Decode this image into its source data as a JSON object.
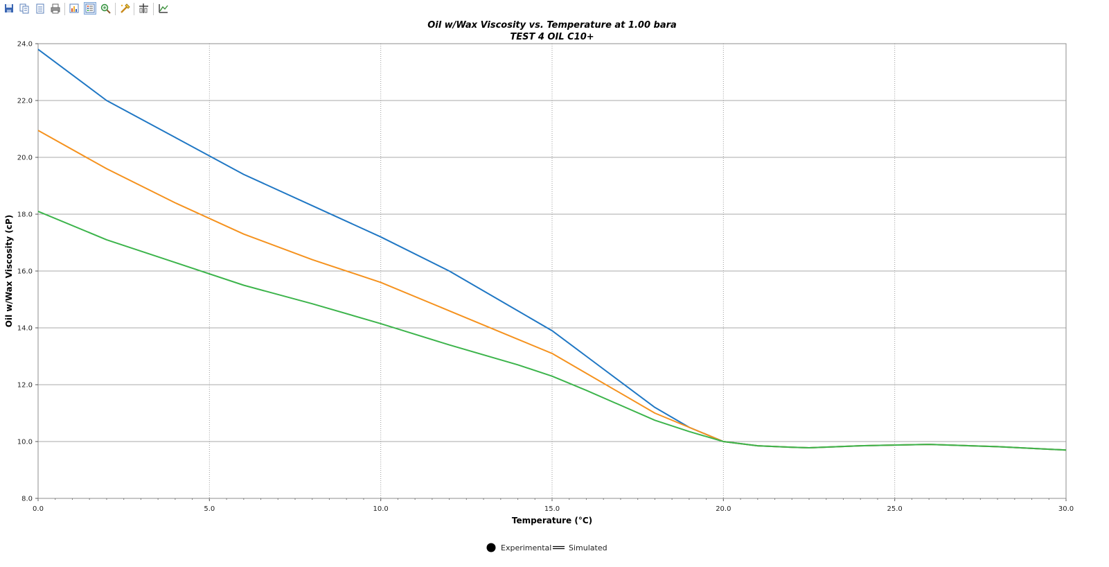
{
  "toolbar": {
    "buttons": [
      {
        "name": "save-icon",
        "active": false
      },
      {
        "name": "copy-icon",
        "active": false
      },
      {
        "name": "copy-data-icon",
        "active": false
      },
      {
        "name": "print-icon",
        "active": false
      },
      {
        "name": "chart-options-icon",
        "active": false
      },
      {
        "name": "legend-icon",
        "active": true
      },
      {
        "name": "zoom-icon",
        "active": false
      },
      {
        "name": "highlight-icon",
        "active": false
      },
      {
        "name": "crosshair-icon",
        "active": false
      },
      {
        "name": "axis-icon",
        "active": false
      }
    ]
  },
  "chart_data": {
    "type": "line",
    "title": "Oil w/Wax Viscosity vs. Temperature at 1.00 bara",
    "subtitle": "TEST 4 OIL C10+",
    "xlabel": "Temperature (°C)",
    "ylabel": "Oil w/Wax Viscosity (cP)",
    "xlim": [
      0,
      30
    ],
    "ylim": [
      8,
      24
    ],
    "xticks": [
      "0.0",
      "5.0",
      "10.0",
      "15.0",
      "20.0",
      "25.0",
      "30.0"
    ],
    "yticks": [
      "8.0",
      "10.0",
      "12.0",
      "14.0",
      "16.0",
      "18.0",
      "20.0",
      "22.0",
      "24.0"
    ],
    "grid": {
      "x": "dotted",
      "y": "solid"
    },
    "legend": {
      "placement": "bottom-center",
      "entries": [
        {
          "label": "Experimental",
          "marker": "dot"
        },
        {
          "label": "Simulated",
          "marker": "line"
        }
      ]
    },
    "series": [
      {
        "color": "#1f77c4",
        "x": [
          0,
          2,
          4,
          6,
          8,
          10,
          12,
          14,
          15,
          16,
          18,
          19,
          20,
          21,
          22,
          22.5,
          24,
          26,
          28,
          30
        ],
        "y": [
          23.8,
          22.0,
          20.7,
          19.4,
          18.3,
          17.2,
          16.0,
          14.6,
          13.9,
          13.0,
          11.2,
          10.5,
          10.0,
          9.85,
          9.8,
          9.78,
          9.85,
          9.9,
          9.82,
          9.7
        ]
      },
      {
        "color": "#f5921e",
        "x": [
          0,
          2,
          4,
          6,
          8,
          10,
          12,
          14,
          15,
          16,
          18,
          19,
          20,
          21,
          22,
          22.5,
          24,
          26,
          28,
          30
        ],
        "y": [
          20.95,
          19.6,
          18.4,
          17.3,
          16.4,
          15.6,
          14.6,
          13.6,
          13.1,
          12.4,
          11.0,
          10.5,
          10.0,
          9.85,
          9.8,
          9.78,
          9.85,
          9.9,
          9.82,
          9.7
        ]
      },
      {
        "color": "#3cb44b",
        "x": [
          0,
          2,
          4,
          6,
          8,
          10,
          12,
          14,
          15,
          16,
          18,
          19,
          20,
          21,
          22,
          22.5,
          24,
          26,
          28,
          30
        ],
        "y": [
          18.1,
          17.1,
          16.3,
          15.5,
          14.85,
          14.15,
          13.4,
          12.7,
          12.3,
          11.8,
          10.75,
          10.35,
          10.0,
          9.85,
          9.8,
          9.78,
          9.85,
          9.9,
          9.82,
          9.7
        ]
      }
    ]
  }
}
